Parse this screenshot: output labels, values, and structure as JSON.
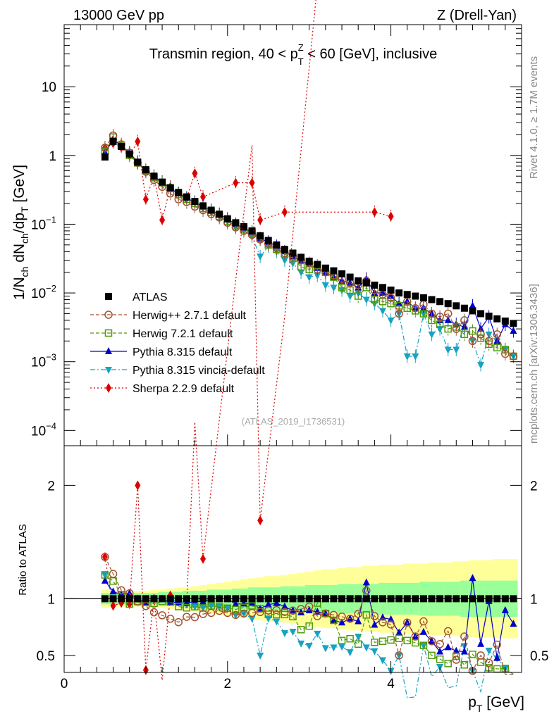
{
  "header": {
    "left": "13000 GeV pp",
    "right": "Z (Drell-Yan)"
  },
  "side_labels": {
    "top": "Rivet 4.1.0, ≥ 1.7M events",
    "bottom": "mcplots.cern.ch [arXiv:1306.3436]"
  },
  "watermark": "(ATLAS_2019_I1736531)",
  "chart_data": [
    {
      "type": "line",
      "scale": "log",
      "title_parts": {
        "a": "Transmin region, 40 < p",
        "sup": "Z",
        "sub": "T",
        "b": " < 60 [GeV], inclusive"
      },
      "ylabel": "1/N_ch dN_ch/dp_T [GeV]",
      "xlim": [
        0,
        5.6
      ],
      "ylim": [
        6e-05,
        80
      ],
      "yticks": [
        {
          "v": 10,
          "base": "10",
          "exp": ""
        },
        {
          "v": 1,
          "base": "1",
          "exp": ""
        },
        {
          "v": 0.1,
          "base": "10",
          "exp": "−1"
        },
        {
          "v": 0.01,
          "base": "10",
          "exp": "−2"
        },
        {
          "v": 0.001,
          "base": "10",
          "exp": "−3"
        },
        {
          "v": 0.0001,
          "base": "10",
          "exp": "−4"
        }
      ],
      "x": [
        0.5,
        0.6,
        0.7,
        0.8,
        0.9,
        1.0,
        1.1,
        1.2,
        1.3,
        1.4,
        1.5,
        1.6,
        1.7,
        1.8,
        1.9,
        2.0,
        2.1,
        2.2,
        2.3,
        2.4,
        2.5,
        2.6,
        2.7,
        2.8,
        2.9,
        3.0,
        3.1,
        3.2,
        3.3,
        3.4,
        3.5,
        3.6,
        3.7,
        3.8,
        3.9,
        4.0,
        4.1,
        4.2,
        4.3,
        4.4,
        4.5,
        4.6,
        4.7,
        4.8,
        4.9,
        5.0,
        5.1,
        5.2,
        5.3,
        5.4,
        5.5
      ],
      "series": [
        {
          "name": "ATLAS",
          "color": "#000000",
          "marker": "square-filled",
          "line": "none",
          "values": [
            0.95,
            1.6,
            1.35,
            1.05,
            0.8,
            0.62,
            0.5,
            0.41,
            0.34,
            0.29,
            0.25,
            0.215,
            0.185,
            0.16,
            0.14,
            0.12,
            0.105,
            0.092,
            0.08,
            0.068,
            0.058,
            0.05,
            0.043,
            0.038,
            0.033,
            0.029,
            0.026,
            0.023,
            0.021,
            0.019,
            0.017,
            0.015,
            0.014,
            0.013,
            0.012,
            0.011,
            0.01,
            0.0095,
            0.009,
            0.0085,
            0.008,
            0.0075,
            0.007,
            0.0065,
            0.006,
            0.0055,
            0.005,
            0.0046,
            0.0042,
            0.0039,
            0.0036
          ]
        },
        {
          "name": "Herwig++ 2.7.1 default",
          "color": "#a0522d",
          "marker": "circle-open",
          "line": "dashed",
          "values": [
            1.3,
            1.95,
            1.45,
            1.1,
            0.78,
            0.58,
            0.44,
            0.35,
            0.28,
            0.23,
            0.21,
            0.18,
            0.16,
            0.14,
            0.125,
            0.105,
            0.09,
            0.08,
            0.07,
            0.06,
            0.052,
            0.045,
            0.038,
            0.034,
            0.03,
            0.027,
            0.022,
            0.02,
            0.018,
            0.016,
            0.014,
            0.013,
            0.015,
            0.011,
            0.0095,
            0.0085,
            0.005,
            0.0075,
            0.006,
            0.0068,
            0.005,
            0.0045,
            0.005,
            0.003,
            0.004,
            0.002,
            0.0025,
            0.002,
            0.0025,
            0.0013,
            0.0012
          ]
        },
        {
          "name": "Herwig 7.2.1 default",
          "color": "#4e9a06",
          "marker": "square-open",
          "line": "dashed",
          "values": [
            1.15,
            1.85,
            1.4,
            1.0,
            0.78,
            0.6,
            0.48,
            0.4,
            0.33,
            0.27,
            0.23,
            0.2,
            0.17,
            0.15,
            0.13,
            0.11,
            0.095,
            0.085,
            0.075,
            0.062,
            0.05,
            0.043,
            0.037,
            0.032,
            0.024,
            0.022,
            0.025,
            0.02,
            0.017,
            0.012,
            0.011,
            0.009,
            0.012,
            0.008,
            0.0075,
            0.007,
            0.0065,
            0.006,
            0.0055,
            0.005,
            0.004,
            0.0035,
            0.003,
            0.0032,
            0.0025,
            0.0028,
            0.0022,
            0.0018,
            0.0016,
            0.0015,
            0.0012
          ]
        },
        {
          "name": "Pythia 8.315 default",
          "color": "#0000cc",
          "marker": "triangle-up",
          "line": "solid",
          "values": [
            1.1,
            1.7,
            1.4,
            1.1,
            0.8,
            0.6,
            0.5,
            0.41,
            0.33,
            0.28,
            0.24,
            0.21,
            0.18,
            0.16,
            0.14,
            0.12,
            0.1,
            0.088,
            0.077,
            0.062,
            0.055,
            0.048,
            0.04,
            0.034,
            0.029,
            0.026,
            0.023,
            0.02,
            0.017,
            0.015,
            0.014,
            0.012,
            0.016,
            0.01,
            0.01,
            0.009,
            0.007,
            0.0075,
            0.006,
            0.006,
            0.005,
            0.004,
            0.004,
            0.0035,
            0.0032,
            0.0065,
            0.003,
            0.0045,
            0.002,
            0.0035,
            0.0028
          ]
        },
        {
          "name": "Pythia 8.315 vincia-default",
          "color": "#17a3c2",
          "marker": "triangle-down",
          "line": "dashdot",
          "values": [
            1.15,
            1.6,
            1.35,
            1.05,
            0.8,
            0.62,
            0.5,
            0.41,
            0.34,
            0.28,
            0.24,
            0.2,
            0.17,
            0.15,
            0.13,
            0.11,
            0.09,
            0.08,
            0.066,
            0.034,
            0.048,
            0.04,
            0.03,
            0.027,
            0.02,
            0.017,
            0.018,
            0.013,
            0.012,
            0.011,
            0.009,
            0.01,
            0.008,
            0.007,
            0.0055,
            0.004,
            0.005,
            0.0012,
            0.0012,
            0.005,
            0.0025,
            0.003,
            0.0015,
            0.0015,
            0.0035,
            0.002,
            0.0009,
            0.0025,
            0.002,
            0.0015,
            0.0012
          ]
        },
        {
          "name": "Sherpa 2.2.9 default",
          "color": "#dd0000",
          "marker": "diamond",
          "line": "dotted",
          "x": [
            0.5,
            0.6,
            0.7,
            0.8,
            0.9,
            1.0,
            1.1,
            1.2,
            1.3,
            1.5,
            1.6,
            1.7,
            2.1,
            2.3,
            2.4,
            2.7,
            3.8,
            4.0
          ],
          "values": [
            1.3,
            1.5,
            1.3,
            1.0,
            1.6,
            0.23,
            0.5,
            0.115,
            0.35,
            0.24,
            0.55,
            0.25,
            0.4,
            0.4,
            0.115,
            0.15,
            0.15,
            0.13
          ]
        }
      ]
    },
    {
      "type": "line",
      "scale": "linear",
      "ylabel": "Ratio to ATLAS",
      "xlabel": "p_T [GeV]",
      "xlim": [
        0,
        5.6
      ],
      "ylim": [
        0.35,
        2.35
      ],
      "yticks": [
        0.5,
        1,
        2
      ],
      "xticks": [
        0,
        2,
        4
      ],
      "band_inner": [
        0.05,
        0.05,
        0.05,
        0.05,
        0.05,
        0.05,
        0.05,
        0.06,
        0.06,
        0.06,
        0.07,
        0.07,
        0.07,
        0.08,
        0.08,
        0.08,
        0.09,
        0.09,
        0.1,
        0.1,
        0.1,
        0.1,
        0.11,
        0.11,
        0.11,
        0.12,
        0.12,
        0.12,
        0.12,
        0.13,
        0.13,
        0.13,
        0.13,
        0.13,
        0.14,
        0.14,
        0.14,
        0.14,
        0.14,
        0.15,
        0.15,
        0.15,
        0.15,
        0.15,
        0.16,
        0.16,
        0.16,
        0.16,
        0.16,
        0.16,
        0.16
      ],
      "band_outer": [
        0.08,
        0.07,
        0.07,
        0.07,
        0.07,
        0.07,
        0.08,
        0.08,
        0.09,
        0.1,
        0.1,
        0.11,
        0.12,
        0.13,
        0.14,
        0.15,
        0.16,
        0.17,
        0.18,
        0.19,
        0.2,
        0.2,
        0.21,
        0.22,
        0.23,
        0.24,
        0.25,
        0.26,
        0.26,
        0.27,
        0.28,
        0.28,
        0.29,
        0.29,
        0.3,
        0.3,
        0.3,
        0.31,
        0.31,
        0.31,
        0.32,
        0.32,
        0.32,
        0.33,
        0.33,
        0.34,
        0.34,
        0.34,
        0.35,
        0.35,
        0.35
      ]
    }
  ]
}
